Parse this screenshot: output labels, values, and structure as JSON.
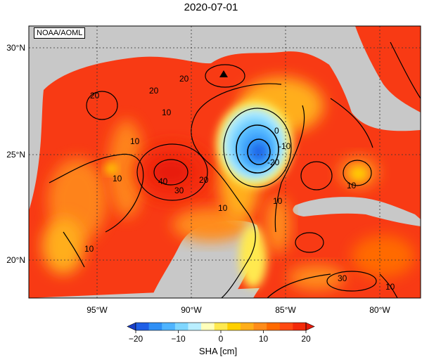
{
  "title": "2020-07-01",
  "credit": "NOAA/AOML",
  "map": {
    "lat_labels": [
      {
        "label": "30°N",
        "lat": 30
      },
      {
        "label": "25°N",
        "lat": 25
      },
      {
        "label": "20°N",
        "lat": 20
      }
    ],
    "lon_labels": [
      {
        "label": "95°W",
        "lon": -95
      },
      {
        "label": "90°W",
        "lon": -90
      },
      {
        "label": "85°W",
        "lon": -85
      },
      {
        "label": "80°W",
        "lon": -80
      }
    ],
    "contour_labels": [
      "20",
      "20",
      "20",
      "10",
      "10",
      "10",
      "0",
      "-10",
      "-20",
      "40",
      "30",
      "20",
      "10",
      "10",
      "10",
      "10",
      "30",
      "10"
    ],
    "marker": "triangle"
  },
  "colorbar": {
    "title": "SHA [cm]",
    "ticks": [
      "-20",
      "-10",
      "0",
      "10",
      "20"
    ],
    "colors": [
      "#1f5fe6",
      "#2f8ff5",
      "#4fb4ff",
      "#7fd6ff",
      "#b9eeff",
      "#ffffbb",
      "#ffe94f",
      "#ffd000",
      "#ffae1a",
      "#ff8c1a",
      "#ff6a00",
      "#ff4a12",
      "#f32a0a"
    ],
    "min_color": "#1a3fc8",
    "max_color": "#e81a0a"
  }
}
